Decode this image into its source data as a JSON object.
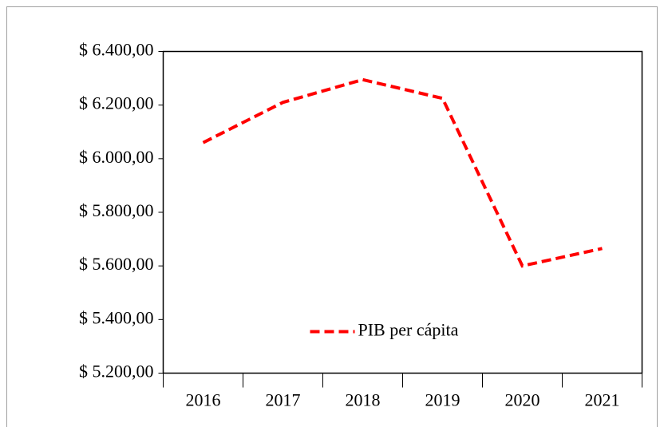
{
  "chart_data": {
    "type": "line",
    "categories": [
      "2016",
      "2017",
      "2018",
      "2019",
      "2020",
      "2021"
    ],
    "series": [
      {
        "name": "PIB per cápita",
        "color": "#ff0000",
        "values": [
          6060,
          6210,
          6295,
          6225,
          5600,
          5665
        ]
      }
    ],
    "ylim": [
      5200,
      6400
    ],
    "yticks": [
      {
        "value": 5200,
        "label": "$ 5.200,00"
      },
      {
        "value": 5400,
        "label": "$ 5.400,00"
      },
      {
        "value": 5600,
        "label": "$ 5.600,00"
      },
      {
        "value": 5800,
        "label": "$ 5.800,00"
      },
      {
        "value": 6000,
        "label": "$ 6.000,00"
      },
      {
        "value": 6200,
        "label": "$ 6.200,00"
      },
      {
        "value": 6400,
        "label": "$ 6.400,00"
      }
    ],
    "legend": "lower center"
  }
}
